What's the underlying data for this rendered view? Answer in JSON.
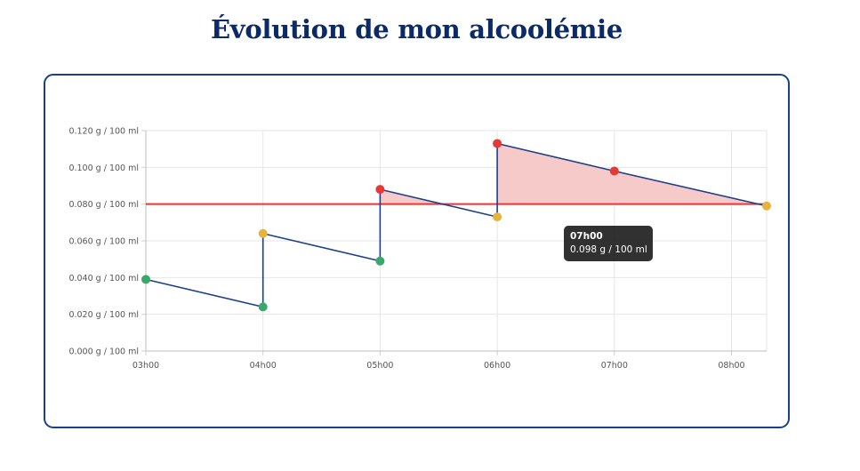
{
  "page": {
    "title": "Évolution de mon alcoolémie"
  },
  "colors": {
    "title": "#0b2a66",
    "card_border": "#1a3f8f",
    "line": "#1a3f8f",
    "threshold": "#e53935",
    "over_fill": "#f7caca",
    "point_green": "#3aa86b",
    "point_yellow": "#e6b43c",
    "point_red": "#e53935",
    "grid": "#e6e6e6"
  },
  "tooltip": {
    "title": "07h00",
    "value": "0.098 g / 100 ml"
  },
  "chart_data": {
    "type": "line",
    "title": "",
    "xlabel": "",
    "ylabel": "",
    "x_tick_labels": [
      "03h00",
      "04h00",
      "05h00",
      "06h00",
      "07h00",
      "08h00"
    ],
    "y_tick_labels": [
      "0.000 g / 100 ml",
      "0.020 g / 100 ml",
      "0.040 g / 100 ml",
      "0.060 g / 100 ml",
      "0.080 g / 100 ml",
      "0.100 g / 100 ml",
      "0.120 g / 100 ml"
    ],
    "xlim": [
      3.0,
      8.3
    ],
    "ylim": [
      0,
      0.12
    ],
    "grid": true,
    "threshold": 0.08,
    "series": [
      {
        "points": [
          {
            "x": 3.0,
            "y": 0.039,
            "status": "green"
          },
          {
            "x": 4.0,
            "y": 0.024,
            "status": "green"
          },
          {
            "x": 4.0,
            "y": 0.064,
            "status": "yellow"
          },
          {
            "x": 5.0,
            "y": 0.049,
            "status": "green"
          },
          {
            "x": 5.0,
            "y": 0.088,
            "status": "red"
          },
          {
            "x": 6.0,
            "y": 0.073,
            "status": "yellow"
          },
          {
            "x": 6.0,
            "y": 0.113,
            "status": "red"
          },
          {
            "x": 7.0,
            "y": 0.098,
            "status": "red"
          },
          {
            "x": 8.3,
            "y": 0.079,
            "status": "yellow"
          }
        ]
      }
    ]
  }
}
